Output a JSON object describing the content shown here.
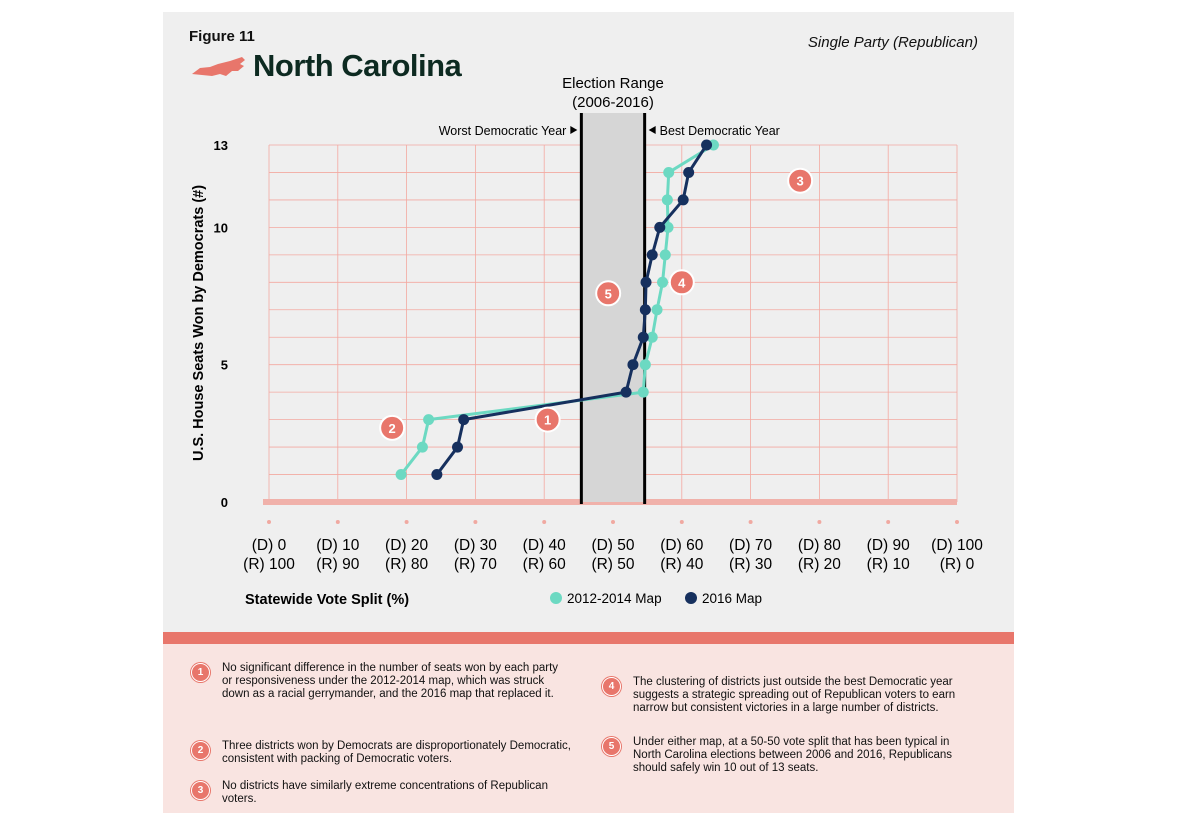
{
  "header": {
    "figure_label": "Figure 11",
    "state_title": "North Carolina",
    "party_label": "Single Party (Republican)"
  },
  "colors": {
    "coral": "#e8766b",
    "series_2012": "#6cd9c2",
    "series_2016": "#16305e",
    "title_green": "#0d2a21"
  },
  "chart_data": {
    "type": "line",
    "ylabel": "U.S. House Seats Won by Democrats (#)",
    "xlabel": "Statewide Vote Split (%)",
    "xlim": [
      0,
      100
    ],
    "ylim": [
      0,
      13
    ],
    "yticks": [
      {
        "value": 0,
        "label": "0"
      },
      {
        "value": 5,
        "label": "5"
      },
      {
        "value": 10,
        "label": "10"
      },
      {
        "value": 13,
        "label": "13"
      }
    ],
    "xticks": [
      {
        "value": 0,
        "d": "(D) 0",
        "r": "(R) 100"
      },
      {
        "value": 10,
        "d": "(D) 10",
        "r": "(R) 90"
      },
      {
        "value": 20,
        "d": "(D) 20",
        "r": "(R) 80"
      },
      {
        "value": 30,
        "d": "(D) 30",
        "r": "(R) 70"
      },
      {
        "value": 40,
        "d": "(D) 40",
        "r": "(R) 60"
      },
      {
        "value": 50,
        "d": "(D) 50",
        "r": "(R) 50"
      },
      {
        "value": 60,
        "d": "(D) 60",
        "r": "(R) 40"
      },
      {
        "value": 70,
        "d": "(D) 70",
        "r": "(R) 30"
      },
      {
        "value": 80,
        "d": "(D) 80",
        "r": "(R) 20"
      },
      {
        "value": 90,
        "d": "(D) 90",
        "r": "(R) 10"
      },
      {
        "value": 100,
        "d": "(D) 100",
        "r": "(R) 0"
      }
    ],
    "election_range": {
      "title_line1": "Election Range",
      "title_line2": "(2006-2016)",
      "low": 45.4,
      "high": 54.6,
      "worst_label": "Worst Democratic Year",
      "best_label": "Best Democratic Year"
    },
    "series": [
      {
        "name": "2012-2014 Map",
        "color": "#6cd9c2",
        "points": [
          [
            19.2,
            1
          ],
          [
            22.3,
            2
          ],
          [
            23.2,
            3
          ],
          [
            54.4,
            4
          ],
          [
            54.7,
            5
          ],
          [
            55.7,
            6
          ],
          [
            56.4,
            7
          ],
          [
            57.2,
            8
          ],
          [
            57.6,
            9
          ],
          [
            58.0,
            10
          ],
          [
            57.9,
            11
          ],
          [
            58.1,
            12
          ],
          [
            64.6,
            13
          ]
        ]
      },
      {
        "name": "2016 Map",
        "color": "#16305e",
        "points": [
          [
            24.4,
            1
          ],
          [
            27.4,
            2
          ],
          [
            28.3,
            3
          ],
          [
            51.9,
            4
          ],
          [
            52.9,
            5
          ],
          [
            54.4,
            6
          ],
          [
            54.7,
            7
          ],
          [
            54.8,
            8
          ],
          [
            55.7,
            9
          ],
          [
            56.8,
            10
          ],
          [
            60.2,
            11
          ],
          [
            61.0,
            12
          ],
          [
            63.6,
            13
          ]
        ]
      }
    ],
    "callouts": [
      {
        "label": "1",
        "x": 40.5,
        "y": 3.0
      },
      {
        "label": "2",
        "x": 17.9,
        "y": 2.7
      },
      {
        "label": "3",
        "x": 77.2,
        "y": 11.7
      },
      {
        "label": "4",
        "x": 60.0,
        "y": 8.0
      },
      {
        "label": "5",
        "x": 49.3,
        "y": 7.6
      }
    ],
    "legend": [
      {
        "label": "2012-2014 Map",
        "color": "#6cd9c2"
      },
      {
        "label": "2016 Map",
        "color": "#16305e"
      }
    ]
  },
  "notes": [
    {
      "num": "1",
      "text": "No significant difference in the number of seats won by each party or responsiveness under the 2012-2014 map, which was struck down as a racial gerrymander, and the 2016 map that replaced it."
    },
    {
      "num": "2",
      "text": "Three districts won by Democrats are disproportionately Democratic, consistent with packing of Democratic voters."
    },
    {
      "num": "3",
      "text": "No districts have similarly extreme concentrations of Republican voters."
    },
    {
      "num": "4",
      "text": "The clustering of districts just outside the best Democratic year suggests a strategic spreading out of Republican voters to earn narrow but consistent victories in a large number of districts."
    },
    {
      "num": "5",
      "text": "Under either map, at a 50-50 vote split that has been typical in North Carolina elections between 2006 and 2016, Republicans should safely win 10 out of 13 seats."
    }
  ]
}
